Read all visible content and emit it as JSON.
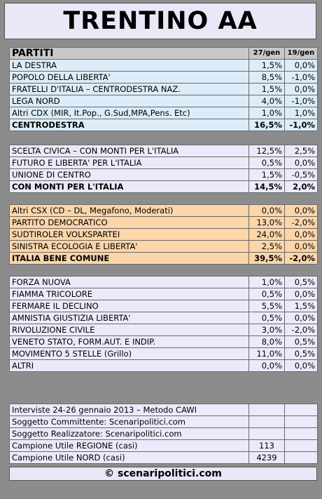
{
  "title": "TRENTINO AA",
  "header": {
    "col_party": "PARTITI",
    "col_date1": "27/gen",
    "col_date2": "19/gen"
  },
  "group1": {
    "rows": [
      {
        "name": "LA DESTRA",
        "value": "1,5%",
        "change": "0,0%",
        "neg": false
      },
      {
        "name": "POPOLO DELLA LIBERTA'",
        "value": "8,5%",
        "change": "-1,0%",
        "neg": true
      },
      {
        "name": "FRATELLI D'ITALIA – CENTRODESTRA NAZ.",
        "value": "1,5%",
        "change": "0,0%",
        "neg": false
      },
      {
        "name": "LEGA NORD",
        "value": "4,0%",
        "change": "-1,0%",
        "neg": true
      },
      {
        "name": "Altri CDX (MIR, It.Pop., G.Sud,MPA,Pens. Etc)",
        "value": "1,0%",
        "change": "1,0%",
        "neg": false
      }
    ],
    "total": {
      "name": "CENTRODESTRA",
      "value": "16,5%",
      "change": "-1,0%",
      "neg": true
    }
  },
  "group2": {
    "rows": [
      {
        "name": "SCELTA CIVICA – CON MONTI PER L'ITALIA",
        "value": "12,5%",
        "change": "2,5%",
        "neg": false
      },
      {
        "name": "FUTURO E LIBERTA' PER L'ITALIA",
        "value": "0,5%",
        "change": "0,0%",
        "neg": false
      },
      {
        "name": "UNIONE DI CENTRO",
        "value": "1,5%",
        "change": "-0,5%",
        "neg": true
      }
    ],
    "total": {
      "name": "CON MONTI PER L'ITALIA",
      "value": "14,5%",
      "change": "2,0%",
      "neg": false
    }
  },
  "group3": {
    "rows": [
      {
        "name": "Altri CSX (CD – DL, Megafono, Moderati)",
        "value": "0,0%",
        "change": "0,0%",
        "neg": false
      },
      {
        "name": "PARTITO DEMOCRATICO",
        "value": "13,0%",
        "change": "-2,0%",
        "neg": true
      },
      {
        "name": "SUDTIROLER VOLKSPARTEI",
        "value": "24,0%",
        "change": "0,0%",
        "neg": false
      },
      {
        "name": "SINISTRA ECOLOGIA E LIBERTA'",
        "value": "2,5%",
        "change": "0,0%",
        "neg": false
      }
    ],
    "total": {
      "name": "ITALIA BENE COMUNE",
      "value": "39,5%",
      "change": "-2,0%",
      "neg": true
    }
  },
  "group4": {
    "rows": [
      {
        "name": "FORZA NUOVA",
        "value": "1,0%",
        "change": "0,5%",
        "neg": false
      },
      {
        "name": "FIAMMA TRICOLORE",
        "value": "0,5%",
        "change": "0,0%",
        "neg": false
      },
      {
        "name": "FERMARE IL DECLINO",
        "value": "5,5%",
        "change": "1,5%",
        "neg": false
      },
      {
        "name": "AMNISTIA GIUSTIZIA LIBERTA'",
        "value": "0,5%",
        "change": "0,0%",
        "neg": false
      },
      {
        "name": "RIVOLUZIONE CIVILE",
        "value": "3,0%",
        "change": "-2,0%",
        "neg": true
      },
      {
        "name": "VENETO STATO, FORM.AUT. E INDIP.",
        "value": "8,0%",
        "change": "0,5%",
        "neg": false
      },
      {
        "name": "MOVIMENTO 5 STELLE (Grillo)",
        "value": "11,0%",
        "change": "0,5%",
        "neg": false
      },
      {
        "name": "ALTRI",
        "value": "0,0%",
        "change": "0,0%",
        "neg": false
      }
    ]
  },
  "info": {
    "rows": [
      {
        "name": "Interviste 24-26 gennaio 2013 – Metodo CAWI",
        "value": ""
      },
      {
        "name": "Soggetto Committente: Scenaripolitici.com",
        "value": ""
      },
      {
        "name": "Soggetto Realizzatore: Scenaripolitici.com",
        "value": ""
      },
      {
        "name": "Campione Utile REGIONE (casi)",
        "value": "113"
      },
      {
        "name": "Campione Utile NORD (casi)",
        "value": "4239"
      }
    ]
  },
  "footer": "© scenaripolitici.com",
  "colors": {
    "negative": "#cc1111",
    "orange_band": "#fcd5a8",
    "blue_band": "#dcecf8",
    "lavender_band": "#eaeafb"
  }
}
